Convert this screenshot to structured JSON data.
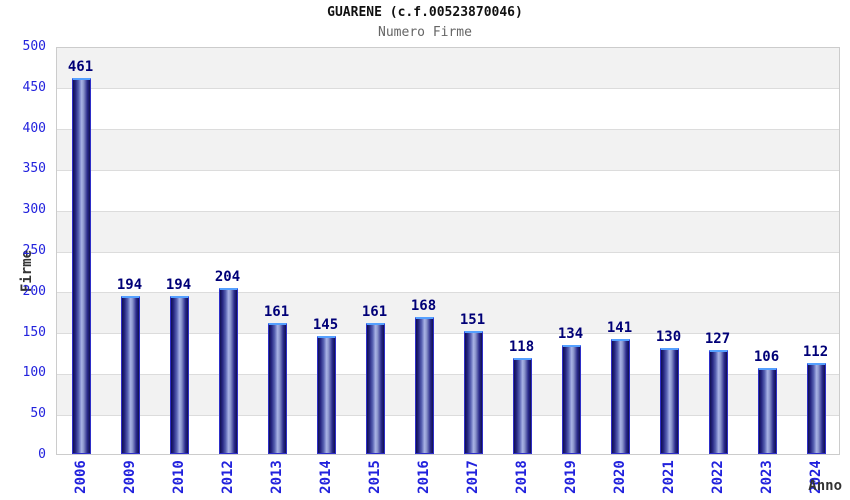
{
  "chart_data": {
    "type": "bar",
    "title": "GUARENE (c.f.00523870046)",
    "subtitle": "Numero Firme",
    "xlabel": "Anno",
    "ylabel": "Firme",
    "categories": [
      "2006",
      "2009",
      "2010",
      "2012",
      "2013",
      "2014",
      "2015",
      "2016",
      "2017",
      "2018",
      "2019",
      "2020",
      "2021",
      "2022",
      "2023",
      "2024"
    ],
    "values": [
      461,
      194,
      194,
      204,
      161,
      145,
      161,
      168,
      151,
      118,
      134,
      141,
      130,
      127,
      106,
      112
    ],
    "ylim": [
      0,
      500
    ],
    "yticks": [
      0,
      50,
      100,
      150,
      200,
      250,
      300,
      350,
      400,
      450,
      500
    ],
    "grid": "horizontal gridlines with alternating 50-unit gray/white bands, gray band at top (450-500)",
    "legend": "none",
    "colors": {
      "tick_label": "#2222dd",
      "value_label": "#000077",
      "bar_outline": "#2e2ec8",
      "bar_top_highlight": "#55a0ff",
      "bar_dark": "#101050",
      "bar_light": "#aab4e6",
      "band_gray": "#f2f2f2",
      "gridline": "#dcdcdc",
      "plot_border": "#cccccc",
      "title": "#111111",
      "subtitle": "#666666",
      "axis_title": "#333333"
    }
  }
}
